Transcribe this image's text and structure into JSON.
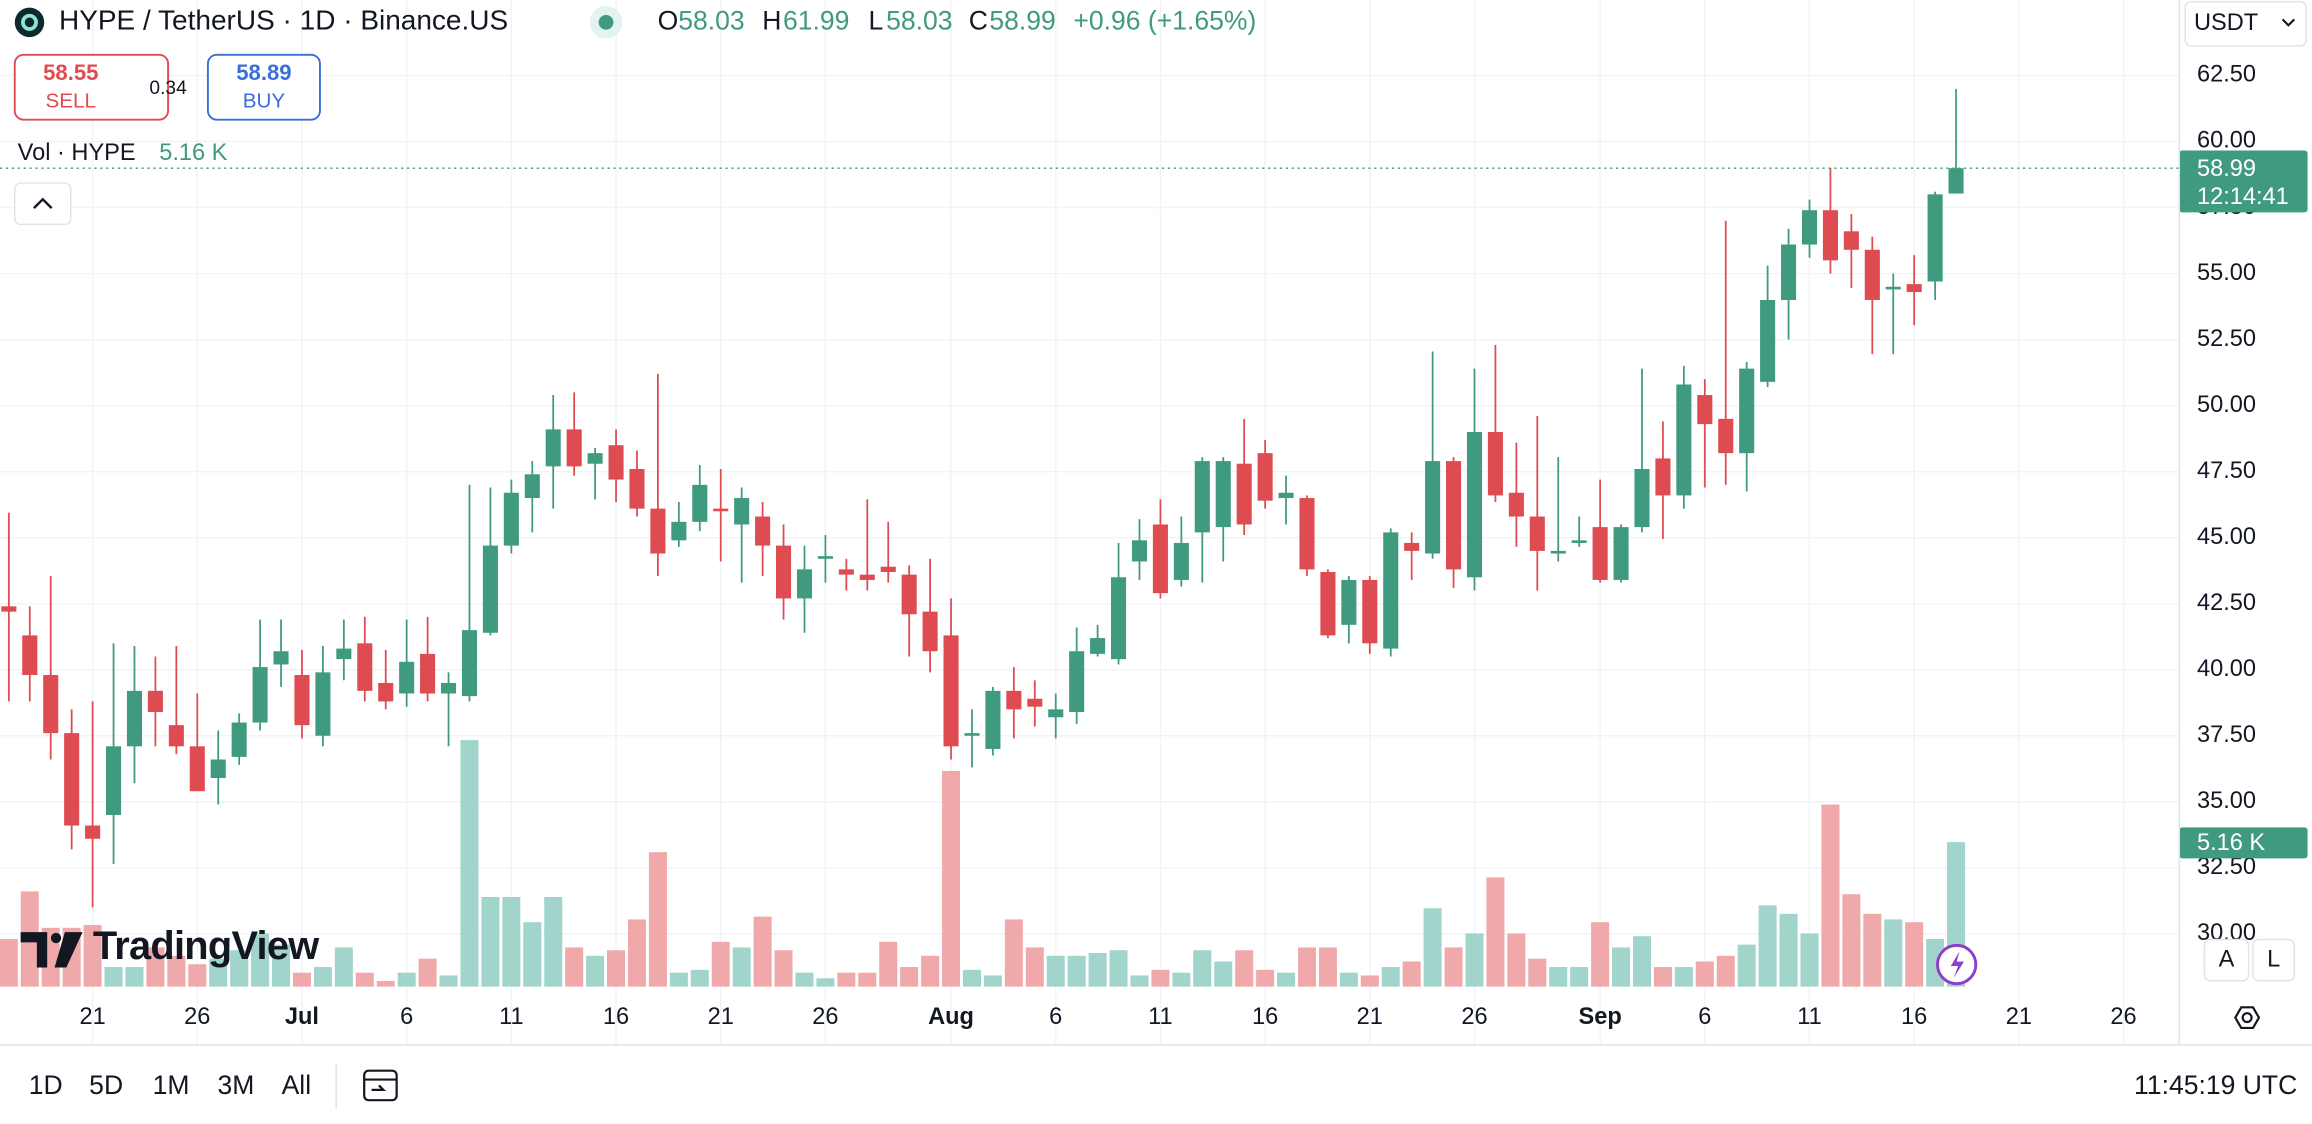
{
  "chart_data": {
    "type": "candlestick",
    "title": "HYPE / TetherUS · 1D · Binance.US",
    "x": [
      "Jun 17",
      "Jun 18",
      "Jun 19",
      "Jun 20",
      "Jun 21",
      "Jun 22",
      "Jun 23",
      "Jun 24",
      "Jun 25",
      "Jun 26",
      "Jun 27",
      "Jun 28",
      "Jun 29",
      "Jun 30",
      "Jul 1",
      "Jul 2",
      "Jul 3",
      "Jul 4",
      "Jul 5",
      "Jul 6",
      "Jul 7",
      "Jul 8",
      "Jul 9",
      "Jul 10",
      "Jul 11",
      "Jul 12",
      "Jul 13",
      "Jul 14",
      "Jul 15",
      "Jul 16",
      "Jul 17",
      "Jul 18",
      "Jul 19",
      "Jul 20",
      "Jul 21",
      "Jul 22",
      "Jul 23",
      "Jul 24",
      "Jul 25",
      "Jul 26",
      "Jul 27",
      "Jul 28",
      "Jul 29",
      "Jul 30",
      "Jul 31",
      "Aug 1",
      "Aug 2",
      "Aug 3",
      "Aug 4",
      "Aug 5",
      "Aug 6",
      "Aug 7",
      "Aug 8",
      "Aug 9",
      "Aug 10",
      "Aug 11",
      "Aug 12",
      "Aug 13",
      "Aug 14",
      "Aug 15",
      "Aug 16",
      "Aug 17",
      "Aug 18",
      "Aug 19",
      "Aug 20",
      "Aug 21",
      "Aug 22",
      "Aug 23",
      "Aug 24",
      "Aug 25",
      "Aug 26",
      "Aug 27",
      "Aug 28",
      "Aug 29",
      "Aug 30",
      "Aug 31",
      "Sep 1",
      "Sep 2",
      "Sep 3",
      "Sep 4",
      "Sep 5",
      "Sep 6",
      "Sep 7",
      "Sep 8",
      "Sep 9",
      "Sep 10",
      "Sep 11",
      "Sep 12",
      "Sep 13",
      "Sep 14",
      "Sep 15",
      "Sep 16",
      "Sep 17",
      "Sep 18"
    ],
    "open": [
      42.4,
      41.3,
      39.8,
      37.6,
      34.1,
      34.5,
      37.1,
      39.2,
      37.9,
      37.1,
      35.9,
      36.7,
      38.0,
      40.2,
      39.8,
      37.5,
      40.4,
      41.0,
      39.5,
      39.1,
      40.6,
      39.1,
      39.0,
      41.4,
      44.7,
      46.5,
      47.7,
      49.1,
      47.8,
      48.5,
      47.6,
      46.1,
      44.9,
      45.6,
      46.1,
      45.5,
      45.8,
      44.7,
      42.7,
      44.2,
      43.8,
      43.6,
      43.9,
      43.6,
      42.2,
      41.3,
      37.5,
      37.0,
      39.2,
      38.9,
      38.2,
      38.4,
      40.6,
      40.4,
      44.1,
      45.5,
      43.4,
      45.2,
      45.4,
      47.8,
      48.2,
      46.5,
      46.5,
      43.7,
      41.7,
      43.4,
      40.8,
      44.8,
      44.4,
      47.9,
      43.5,
      49.0,
      46.7,
      45.8,
      44.4,
      44.8,
      45.4,
      43.4,
      45.4,
      48.0,
      46.6,
      50.4,
      49.5,
      48.2,
      50.9,
      54.0,
      56.1,
      57.4,
      56.6,
      55.9,
      54.4,
      54.6,
      54.7,
      58.03
    ],
    "high": [
      45.95,
      42.4,
      43.55,
      38.5,
      38.8,
      41.0,
      40.9,
      40.5,
      40.9,
      39.1,
      37.7,
      38.35,
      41.9,
      41.9,
      40.75,
      40.9,
      41.9,
      42.0,
      40.75,
      41.9,
      42.0,
      39.9,
      47.0,
      46.9,
      47.2,
      47.9,
      50.4,
      50.5,
      48.4,
      49.1,
      48.3,
      51.2,
      46.35,
      47.75,
      47.6,
      46.9,
      46.35,
      45.5,
      44.7,
      45.1,
      44.2,
      46.45,
      45.6,
      43.95,
      44.2,
      42.7,
      38.5,
      39.35,
      40.1,
      39.6,
      39.1,
      41.6,
      41.7,
      44.8,
      45.7,
      46.45,
      45.8,
      48.05,
      48.05,
      49.5,
      48.7,
      47.35,
      46.6,
      43.8,
      43.55,
      43.55,
      45.35,
      45.2,
      52.05,
      48.05,
      51.4,
      52.3,
      48.6,
      49.6,
      48.05,
      45.8,
      47.2,
      45.5,
      51.4,
      49.4,
      51.5,
      51.0,
      57.0,
      51.65,
      55.3,
      56.7,
      57.8,
      59.0,
      57.25,
      56.4,
      55.0,
      55.7,
      58.1,
      61.99
    ],
    "low": [
      38.8,
      38.8,
      36.6,
      33.2,
      31.0,
      32.65,
      35.7,
      37.1,
      36.8,
      35.45,
      34.9,
      36.4,
      37.7,
      39.35,
      37.4,
      37.1,
      39.6,
      38.8,
      38.5,
      38.6,
      38.8,
      37.1,
      38.8,
      41.3,
      44.4,
      45.2,
      46.1,
      47.35,
      46.45,
      46.35,
      45.8,
      43.55,
      44.65,
      45.25,
      44.1,
      43.3,
      43.55,
      41.9,
      41.4,
      43.3,
      43.0,
      43.0,
      43.3,
      40.5,
      39.9,
      36.6,
      36.3,
      36.75,
      37.4,
      37.85,
      37.4,
      37.95,
      40.5,
      40.2,
      43.4,
      42.7,
      43.15,
      43.3,
      44.1,
      45.1,
      46.1,
      45.5,
      43.55,
      41.2,
      41.0,
      40.6,
      40.5,
      43.4,
      44.2,
      43.1,
      43.0,
      46.35,
      44.65,
      43.0,
      44.1,
      44.65,
      43.3,
      43.3,
      45.2,
      44.95,
      46.1,
      46.9,
      47.0,
      46.75,
      50.7,
      52.5,
      55.6,
      55.0,
      54.45,
      51.95,
      51.95,
      53.05,
      54.0,
      58.03
    ],
    "close": [
      42.2,
      39.8,
      37.6,
      34.1,
      33.6,
      37.1,
      39.2,
      38.4,
      37.1,
      35.4,
      36.6,
      38.0,
      40.1,
      40.7,
      37.9,
      39.9,
      40.8,
      39.2,
      38.8,
      40.3,
      39.1,
      39.5,
      41.5,
      44.7,
      46.7,
      47.4,
      49.1,
      47.7,
      48.2,
      47.2,
      46.1,
      44.4,
      45.6,
      47.0,
      46.0,
      46.5,
      44.7,
      42.7,
      43.8,
      44.3,
      43.6,
      43.4,
      43.7,
      42.1,
      40.7,
      37.1,
      37.6,
      39.2,
      38.5,
      38.6,
      38.5,
      40.7,
      41.2,
      43.5,
      44.9,
      42.9,
      44.8,
      47.9,
      47.9,
      45.5,
      46.4,
      46.7,
      43.8,
      41.3,
      43.4,
      41.0,
      45.2,
      44.5,
      47.9,
      43.8,
      49.0,
      46.6,
      45.8,
      44.5,
      44.5,
      44.9,
      43.4,
      45.4,
      47.6,
      46.6,
      50.8,
      49.3,
      48.2,
      51.4,
      54.0,
      56.1,
      57.4,
      55.5,
      55.9,
      54.0,
      54.5,
      54.3,
      58.0,
      58.99
    ],
    "volume": [
      1.7,
      3.4,
      2.1,
      2.1,
      2.2,
      0.7,
      0.7,
      1.4,
      1.1,
      0.8,
      1.0,
      1.3,
      1.9,
      1.5,
      0.5,
      0.7,
      1.4,
      0.5,
      0.2,
      0.5,
      1.0,
      0.4,
      8.8,
      3.2,
      3.2,
      2.3,
      3.2,
      1.4,
      1.1,
      1.3,
      2.4,
      4.8,
      0.5,
      0.6,
      1.6,
      1.4,
      2.5,
      1.3,
      0.5,
      0.3,
      0.5,
      0.5,
      1.6,
      0.7,
      1.1,
      7.7,
      0.6,
      0.4,
      2.4,
      1.4,
      1.1,
      1.1,
      1.2,
      1.3,
      0.4,
      0.6,
      0.5,
      1.3,
      0.9,
      1.3,
      0.6,
      0.5,
      1.4,
      1.4,
      0.5,
      0.4,
      0.7,
      0.9,
      2.8,
      1.4,
      1.9,
      3.9,
      1.9,
      1.0,
      0.7,
      0.7,
      2.3,
      1.4,
      1.8,
      0.7,
      0.7,
      0.9,
      1.1,
      1.5,
      2.9,
      2.6,
      1.9,
      6.5,
      3.3,
      2.6,
      2.4,
      2.3,
      1.7,
      5.16
    ],
    "volume_label": "5.16 K",
    "volume_title": "Vol · HYPE",
    "up_color": "#3f9a80",
    "down_color": "#de4b51",
    "volume_up_color": "#a1d4ca",
    "volume_down_color": "#f0a9aa",
    "xlim": [
      "Jun 16",
      "Sep 29"
    ],
    "xticks": [
      {
        "value": "Jun 21",
        "label": "21"
      },
      {
        "value": "Jun 26",
        "label": "26"
      },
      {
        "value": "Jul 1",
        "label": "Jul"
      },
      {
        "value": "Jul 6",
        "label": "6"
      },
      {
        "value": "Jul 11",
        "label": "11"
      },
      {
        "value": "Jul 16",
        "label": "16"
      },
      {
        "value": "Jul 21",
        "label": "21"
      },
      {
        "value": "Jul 26",
        "label": "26"
      },
      {
        "value": "Aug 1",
        "label": "Aug"
      },
      {
        "value": "Aug 6",
        "label": "6"
      },
      {
        "value": "Aug 11",
        "label": "11"
      },
      {
        "value": "Aug 16",
        "label": "16"
      },
      {
        "value": "Aug 21",
        "label": "21"
      },
      {
        "value": "Aug 26",
        "label": "26"
      },
      {
        "value": "Sep 1",
        "label": "Sep"
      },
      {
        "value": "Sep 6",
        "label": "6"
      },
      {
        "value": "Sep 11",
        "label": "11"
      },
      {
        "value": "Sep 16",
        "label": "16"
      },
      {
        "value": "Sep 21",
        "label": "21"
      },
      {
        "value": "Sep 26",
        "label": "26"
      }
    ],
    "ylim": [
      28,
      65.35
    ],
    "yticks": [
      {
        "value": 30,
        "label": "30.00"
      },
      {
        "value": 32.5,
        "label": "32.50"
      },
      {
        "value": 35,
        "label": "35.00"
      },
      {
        "value": 37.5,
        "label": "37.50"
      },
      {
        "value": 40,
        "label": "40.00"
      },
      {
        "value": 42.5,
        "label": "42.50"
      },
      {
        "value": 45,
        "label": "45.00"
      },
      {
        "value": 47.5,
        "label": "47.50"
      },
      {
        "value": 50,
        "label": "50.00"
      },
      {
        "value": 52.5,
        "label": "52.50"
      },
      {
        "value": 55,
        "label": "55.00"
      },
      {
        "value": 57.5,
        "label": "57.50"
      },
      {
        "value": 60,
        "label": "60.00"
      },
      {
        "value": 62.5,
        "label": "62.50"
      }
    ],
    "grid": true,
    "countdown": "12:14:41"
  },
  "header": {
    "ohlc": [
      {
        "label": "O",
        "value": "58.03"
      },
      {
        "label": "H",
        "value": "61.99"
      },
      {
        "label": "L",
        "value": "58.03"
      },
      {
        "label": "C",
        "value": "58.99"
      }
    ],
    "change": "+0.96 (+1.65%)"
  },
  "trade": {
    "sell_price": "58.55",
    "sell": "SELL",
    "spread": "0.34",
    "buy_price": "58.89",
    "buy": "BUY"
  },
  "currency": "USDT",
  "logo": "TradingView",
  "scale_buttons": [
    "A",
    "L"
  ],
  "toolbar": {
    "ranges": [
      "1D",
      "5D",
      "1M",
      "3M",
      "All"
    ],
    "clock": "11:45:19 UTC"
  }
}
